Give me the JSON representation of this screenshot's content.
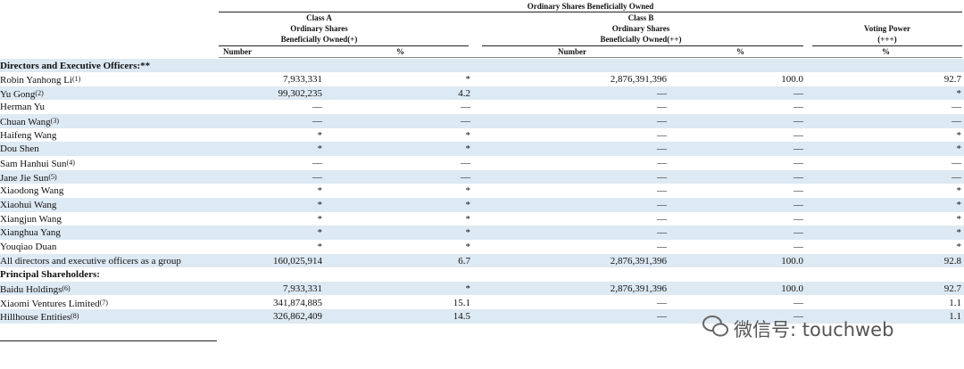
{
  "header": {
    "title": "Ordinary Shares Beneficially Owned",
    "groups": [
      {
        "lines": [
          "Class A",
          "Ordinary Shares",
          "Beneficially Owned(+)"
        ]
      },
      {
        "lines": [
          "Class B",
          "Ordinary Shares",
          "Beneficially Owned(++)"
        ]
      },
      {
        "lines": [
          "Voting Power",
          "(+++)"
        ]
      }
    ],
    "columns": [
      "Number",
      "%",
      "Number",
      "%",
      "%"
    ]
  },
  "table": {
    "rows": [
      {
        "section": "Directors and Executive Officers:**"
      },
      {
        "name": "Robin Yanhong Li",
        "note": "(1)",
        "cells": [
          "7,933,331",
          "*",
          "2,876,391,396",
          "100.0",
          "92.7"
        ]
      },
      {
        "name": "Yu Gong",
        "note": "(2)",
        "cells": [
          "99,302,235",
          "4.2",
          "—",
          "—",
          "*"
        ]
      },
      {
        "name": "Herman Yu",
        "cells": [
          "—",
          "—",
          "—",
          "—",
          "—"
        ]
      },
      {
        "name": "Chuan Wang",
        "note": "(3)",
        "cells": [
          "—",
          "—",
          "—",
          "—",
          "—"
        ]
      },
      {
        "name": "Haifeng Wang",
        "cells": [
          "*",
          "*",
          "—",
          "—",
          "*"
        ]
      },
      {
        "name": "Dou Shen",
        "cells": [
          "*",
          "*",
          "—",
          "—",
          "*"
        ]
      },
      {
        "name": "Sam Hanhui Sun",
        "note": "(4)",
        "cells": [
          "—",
          "—",
          "—",
          "—",
          "—"
        ]
      },
      {
        "name": "Jane Jie Sun",
        "note": "(5)",
        "cells": [
          "—",
          "—",
          "—",
          "—",
          "—"
        ]
      },
      {
        "name": "Xiaodong Wang",
        "cells": [
          "*",
          "*",
          "—",
          "—",
          "*"
        ]
      },
      {
        "name": "Xiaohui Wang",
        "cells": [
          "*",
          "*",
          "—",
          "—",
          "*"
        ]
      },
      {
        "name": "Xiangjun Wang",
        "cells": [
          "*",
          "*",
          "—",
          "—",
          "*"
        ]
      },
      {
        "name": "Xianghua Yang",
        "cells": [
          "*",
          "*",
          "—",
          "—",
          "*"
        ]
      },
      {
        "name": "Youqiao Duan",
        "cells": [
          "*",
          "*",
          "—",
          "—",
          "*"
        ]
      },
      {
        "name": "All directors and executive officers as a group",
        "cells": [
          "160,025,914",
          "6.7",
          "2,876,391,396",
          "100.0",
          "92.8"
        ]
      },
      {
        "section": "Principal Shareholders:"
      },
      {
        "name": "Baidu Holdings",
        "note": "(6)",
        "cells": [
          "7,933,331",
          "*",
          "2,876,391,396",
          "100.0",
          "92.7"
        ]
      },
      {
        "name": "Xiaomi Ventures Limited",
        "note": "(7)",
        "cells": [
          "341,874,885",
          "15.1",
          "—",
          "—",
          "1.1"
        ]
      },
      {
        "name": "Hillhouse Entities",
        "note": "(8)",
        "cells": [
          "326,862,409",
          "14.5",
          "—",
          "—",
          "1.1"
        ]
      }
    ]
  },
  "watermark": "微信号: touchweb"
}
